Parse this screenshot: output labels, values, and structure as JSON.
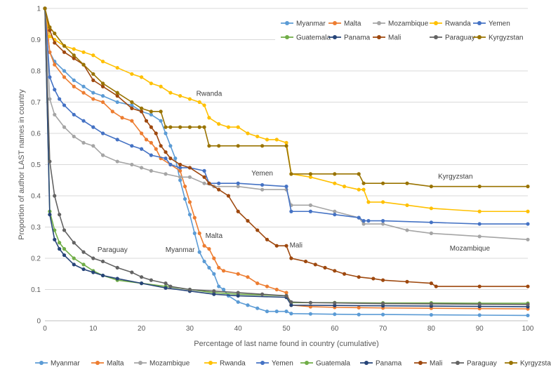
{
  "chart_data": {
    "type": "line",
    "title": "",
    "xlabel": "Percentage of last name found in country (cumulative)",
    "ylabel": "Proportion of author LAST names in country",
    "xlim": [
      0,
      100
    ],
    "ylim": [
      0,
      1
    ],
    "xticks": [
      0,
      10,
      20,
      30,
      40,
      50,
      60,
      70,
      80,
      90,
      100
    ],
    "yticks": [
      0,
      0.1,
      0.2,
      0.3,
      0.4,
      0.5,
      0.6,
      0.7,
      0.8,
      0.9,
      1
    ],
    "grid": "horizontal",
    "legend_placement": "top-right and bottom",
    "series": [
      {
        "name": "Myanmar",
        "color": "#5b9bd5",
        "x": [
          0,
          1,
          2,
          4,
          6,
          8,
          10,
          12,
          15,
          18,
          20,
          22,
          24,
          25,
          26,
          27,
          28,
          29,
          30,
          31,
          32,
          33,
          34,
          35,
          36,
          37,
          38,
          40,
          42,
          44,
          46,
          48,
          50,
          51,
          55,
          60,
          65,
          70,
          80,
          90,
          100
        ],
        "y": [
          1,
          0.86,
          0.83,
          0.8,
          0.77,
          0.75,
          0.73,
          0.72,
          0.7,
          0.69,
          0.67,
          0.66,
          0.64,
          0.6,
          0.56,
          0.52,
          0.45,
          0.39,
          0.34,
          0.28,
          0.22,
          0.19,
          0.17,
          0.15,
          0.11,
          0.1,
          0.08,
          0.06,
          0.05,
          0.04,
          0.03,
          0.03,
          0.03,
          0.023,
          0.022,
          0.021,
          0.02,
          0.02,
          0.019,
          0.018,
          0.017
        ]
      },
      {
        "name": "Malta",
        "color": "#ed7d31",
        "x": [
          0,
          1,
          2,
          4,
          6,
          8,
          10,
          12,
          14,
          16,
          18,
          20,
          21,
          22,
          23,
          24,
          26,
          28,
          29,
          30,
          31,
          32,
          33,
          34,
          35,
          36,
          37,
          40,
          42,
          44,
          46,
          48,
          50,
          51,
          55,
          60,
          65,
          70,
          80,
          90,
          100
        ],
        "y": [
          1,
          0.86,
          0.82,
          0.78,
          0.75,
          0.73,
          0.71,
          0.7,
          0.67,
          0.65,
          0.64,
          0.6,
          0.58,
          0.57,
          0.55,
          0.52,
          0.5,
          0.48,
          0.43,
          0.38,
          0.33,
          0.28,
          0.24,
          0.23,
          0.2,
          0.17,
          0.16,
          0.15,
          0.14,
          0.12,
          0.11,
          0.1,
          0.09,
          0.05,
          0.045,
          0.043,
          0.042,
          0.041,
          0.04,
          0.039,
          0.038
        ]
      },
      {
        "name": "Mozambique",
        "color": "#a5a5a5",
        "x": [
          0,
          1,
          2,
          4,
          6,
          8,
          10,
          12,
          15,
          18,
          20,
          22,
          25,
          28,
          30,
          33,
          35,
          40,
          45,
          50,
          51,
          55,
          60,
          65,
          66,
          70,
          75,
          80,
          90,
          100
        ],
        "y": [
          1,
          0.71,
          0.66,
          0.62,
          0.59,
          0.57,
          0.56,
          0.53,
          0.51,
          0.5,
          0.49,
          0.48,
          0.47,
          0.46,
          0.46,
          0.44,
          0.43,
          0.43,
          0.42,
          0.42,
          0.37,
          0.37,
          0.35,
          0.33,
          0.31,
          0.31,
          0.29,
          0.28,
          0.27,
          0.26
        ]
      },
      {
        "name": "Rwanda",
        "color": "#ffc000",
        "x": [
          0,
          1,
          2,
          4,
          6,
          8,
          10,
          12,
          15,
          18,
          20,
          22,
          24,
          26,
          28,
          30,
          32,
          33,
          34,
          36,
          38,
          40,
          42,
          44,
          46,
          48,
          50,
          51,
          55,
          60,
          62,
          65,
          66,
          67,
          70,
          75,
          80,
          90,
          100
        ],
        "y": [
          1,
          0.91,
          0.9,
          0.88,
          0.87,
          0.86,
          0.85,
          0.83,
          0.81,
          0.79,
          0.78,
          0.76,
          0.75,
          0.73,
          0.72,
          0.71,
          0.7,
          0.69,
          0.65,
          0.63,
          0.62,
          0.62,
          0.6,
          0.59,
          0.58,
          0.58,
          0.57,
          0.47,
          0.46,
          0.44,
          0.43,
          0.42,
          0.42,
          0.38,
          0.38,
          0.37,
          0.36,
          0.35,
          0.35
        ]
      },
      {
        "name": "Yemen",
        "color": "#4472c4",
        "x": [
          0,
          1,
          2,
          3,
          4,
          6,
          8,
          10,
          12,
          15,
          18,
          20,
          22,
          25,
          26,
          28,
          30,
          33,
          34,
          36,
          40,
          45,
          50,
          51,
          55,
          60,
          65,
          66,
          67,
          70,
          80,
          90,
          100
        ],
        "y": [
          1,
          0.78,
          0.74,
          0.71,
          0.69,
          0.66,
          0.64,
          0.62,
          0.6,
          0.58,
          0.56,
          0.55,
          0.53,
          0.52,
          0.5,
          0.49,
          0.49,
          0.48,
          0.44,
          0.44,
          0.44,
          0.435,
          0.43,
          0.35,
          0.35,
          0.34,
          0.33,
          0.32,
          0.32,
          0.32,
          0.315,
          0.31,
          0.31
        ]
      },
      {
        "name": "Guatemala",
        "color": "#70ad47",
        "x": [
          0,
          1,
          2,
          3,
          4,
          6,
          8,
          10,
          12,
          15,
          20,
          25,
          30,
          35,
          40,
          50,
          51,
          60,
          70,
          80,
          90,
          100
        ],
        "y": [
          1,
          0.35,
          0.29,
          0.25,
          0.23,
          0.2,
          0.18,
          0.16,
          0.145,
          0.13,
          0.12,
          0.11,
          0.1,
          0.09,
          0.085,
          0.08,
          0.058,
          0.058,
          0.057,
          0.057,
          0.056,
          0.056
        ]
      },
      {
        "name": "Panama",
        "color": "#264478",
        "x": [
          0,
          1,
          2,
          3,
          4,
          6,
          8,
          10,
          12,
          15,
          20,
          25,
          30,
          35,
          40,
          50,
          51,
          60,
          70,
          80,
          90,
          100
        ],
        "y": [
          1,
          0.34,
          0.26,
          0.23,
          0.21,
          0.18,
          0.165,
          0.155,
          0.145,
          0.135,
          0.12,
          0.105,
          0.095,
          0.085,
          0.08,
          0.075,
          0.05,
          0.049,
          0.048,
          0.047,
          0.046,
          0.045
        ]
      },
      {
        "name": "Mali",
        "color": "#9e480e",
        "x": [
          0,
          1,
          2,
          4,
          6,
          8,
          10,
          12,
          15,
          18,
          20,
          21,
          22,
          23,
          24,
          25,
          26,
          28,
          30,
          33,
          34,
          36,
          38,
          40,
          42,
          44,
          46,
          48,
          50,
          51,
          54,
          56,
          58,
          60,
          62,
          65,
          68,
          70,
          75,
          80,
          81,
          90,
          100
        ],
        "y": [
          1,
          0.93,
          0.89,
          0.86,
          0.84,
          0.82,
          0.77,
          0.75,
          0.72,
          0.68,
          0.67,
          0.64,
          0.62,
          0.6,
          0.56,
          0.54,
          0.52,
          0.5,
          0.49,
          0.46,
          0.44,
          0.42,
          0.4,
          0.35,
          0.32,
          0.29,
          0.26,
          0.24,
          0.24,
          0.2,
          0.19,
          0.18,
          0.17,
          0.16,
          0.15,
          0.14,
          0.135,
          0.13,
          0.125,
          0.12,
          0.11,
          0.11,
          0.11
        ]
      },
      {
        "name": "Paraguay",
        "color": "#636363",
        "x": [
          0,
          1,
          2,
          3,
          4,
          6,
          8,
          10,
          12,
          15,
          18,
          20,
          22,
          25,
          26,
          30,
          35,
          40,
          45,
          50,
          51,
          55,
          60,
          70,
          80,
          90,
          100
        ],
        "y": [
          1,
          0.51,
          0.4,
          0.34,
          0.29,
          0.25,
          0.22,
          0.2,
          0.19,
          0.17,
          0.155,
          0.14,
          0.13,
          0.12,
          0.11,
          0.1,
          0.095,
          0.09,
          0.085,
          0.08,
          0.06,
          0.058,
          0.057,
          0.055,
          0.054,
          0.053,
          0.052
        ]
      },
      {
        "name": "Kyrgyzstan",
        "color": "#997300",
        "x": [
          0,
          1,
          2,
          4,
          6,
          8,
          10,
          12,
          15,
          18,
          20,
          22,
          24,
          25,
          26,
          28,
          30,
          32,
          33,
          34,
          36,
          40,
          45,
          50,
          51,
          55,
          60,
          65,
          66,
          70,
          75,
          80,
          90,
          100
        ],
        "y": [
          1,
          0.94,
          0.92,
          0.88,
          0.85,
          0.82,
          0.79,
          0.76,
          0.73,
          0.7,
          0.68,
          0.67,
          0.67,
          0.62,
          0.62,
          0.62,
          0.62,
          0.62,
          0.62,
          0.56,
          0.56,
          0.56,
          0.56,
          0.56,
          0.47,
          0.47,
          0.47,
          0.47,
          0.44,
          0.44,
          0.44,
          0.43,
          0.43,
          0.43
        ]
      }
    ],
    "annotations": [
      {
        "text": "Rwanda",
        "x": 34,
        "y": 0.72
      },
      {
        "text": "Yemen",
        "x": 45,
        "y": 0.465
      },
      {
        "text": "Kyrgyzstan",
        "x": 85,
        "y": 0.455
      },
      {
        "text": "Paraguay",
        "x": 14,
        "y": 0.22
      },
      {
        "text": "Myanmar",
        "x": 28,
        "y": 0.22
      },
      {
        "text": "Malta",
        "x": 35,
        "y": 0.265
      },
      {
        "text": "Mali",
        "x": 52,
        "y": 0.235
      },
      {
        "text": "Mozambique",
        "x": 88,
        "y": 0.225
      }
    ]
  }
}
